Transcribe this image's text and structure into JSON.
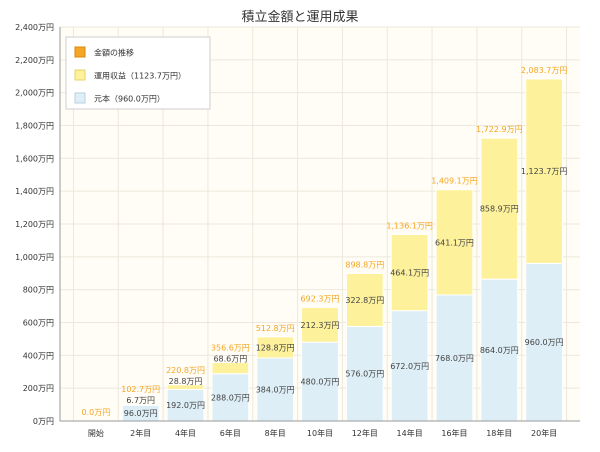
{
  "chart_data": {
    "type": "bar",
    "stacked": true,
    "title": "積立金額と運用成果",
    "categories": [
      "開始",
      "2年目",
      "4年目",
      "6年目",
      "8年目",
      "10年目",
      "12年目",
      "14年目",
      "16年目",
      "18年目",
      "20年目"
    ],
    "series": [
      {
        "name": "元本（960.0万円）",
        "color": "#ddeef6",
        "values": [
          0,
          96.0,
          192.0,
          288.0,
          384.0,
          480.0,
          576.0,
          672.0,
          768.0,
          864.0,
          960.0
        ],
        "labels": [
          "",
          "96.0万円",
          "192.0万円",
          "288.0万円",
          "384.0万円",
          "480.0万円",
          "576.0万円",
          "672.0万円",
          "768.0万円",
          "864.0万円",
          "960.0万円"
        ]
      },
      {
        "name": "運用収益（1123.7万円）",
        "color": "#fdf19c",
        "values": [
          0,
          6.7,
          28.8,
          68.6,
          128.8,
          212.3,
          322.8,
          464.1,
          641.1,
          858.9,
          1123.7
        ],
        "labels": [
          "",
          "6.7万円",
          "28.8万円",
          "68.6万円",
          "128.8万円",
          "212.3万円",
          "322.8万円",
          "464.1万円",
          "641.1万円",
          "858.9万円",
          "1,123.7万円"
        ]
      }
    ],
    "totals": {
      "name": "金額の推移",
      "color": "#f5a623",
      "values": [
        0.0,
        102.7,
        220.8,
        356.6,
        512.8,
        692.3,
        898.8,
        1136.1,
        1409.1,
        1722.9,
        2083.7
      ],
      "labels": [
        "0.0万円",
        "102.7万円",
        "220.8万円",
        "356.6万円",
        "512.8万円",
        "692.3万円",
        "898.8万円",
        "1,136.1万円",
        "1,409.1万円",
        "1,722.9万円",
        "2,083.7万円"
      ]
    },
    "yticks": [
      "0万円",
      "200万円",
      "400万円",
      "600万円",
      "800万円",
      "1,000万円",
      "1,200万円",
      "1,400万円",
      "1,600万円",
      "1,800万円",
      "2,000万円",
      "2,200万円",
      "2,400万円"
    ],
    "ylim": [
      0,
      2400
    ],
    "grid": true,
    "legend_position": "top-left",
    "colors": {
      "plot_background": "#fffdf5",
      "grid": "#ece8dc",
      "axis": "#999999",
      "bar_outline": "#ffffff"
    }
  }
}
